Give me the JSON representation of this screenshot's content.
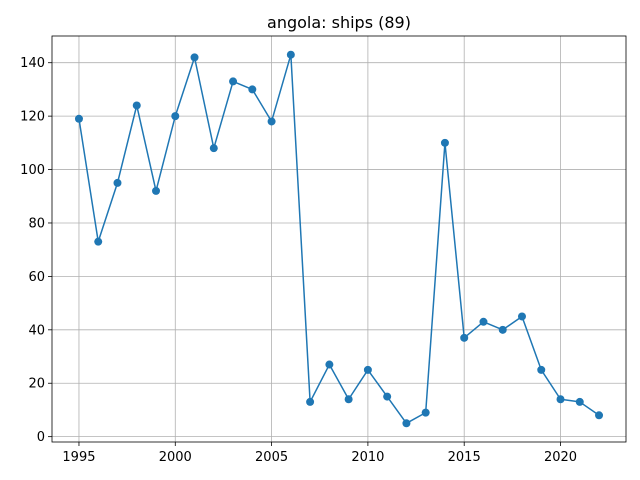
{
  "chart_data": {
    "type": "line",
    "title": "angola: ships (89)",
    "xlabel": "",
    "ylabel": "",
    "grid": true,
    "xlim": [
      1993.6,
      2023.4
    ],
    "ylim": [
      -2,
      150
    ],
    "xticks": [
      1995,
      2000,
      2005,
      2010,
      2015,
      2020
    ],
    "yticks": [
      0,
      20,
      40,
      60,
      80,
      100,
      120,
      140
    ],
    "colors": {
      "line": "#1f77b4",
      "grid": "#b0b0b0",
      "axes": "#000000"
    },
    "series": [
      {
        "x": [
          1995,
          1996,
          1997,
          1998,
          1999,
          2000,
          2001,
          2002,
          2003,
          2004,
          2005,
          2006,
          2007,
          2008,
          2009,
          2010,
          2011,
          2012,
          2013,
          2014,
          2015,
          2016,
          2017,
          2018,
          2019,
          2020,
          2021,
          2022
        ],
        "values": [
          119,
          73,
          95,
          124,
          92,
          120,
          142,
          108,
          133,
          130,
          118,
          143,
          13,
          27,
          14,
          25,
          15,
          5,
          9,
          110,
          37,
          43,
          40,
          45,
          25,
          14,
          13,
          8
        ]
      }
    ]
  }
}
